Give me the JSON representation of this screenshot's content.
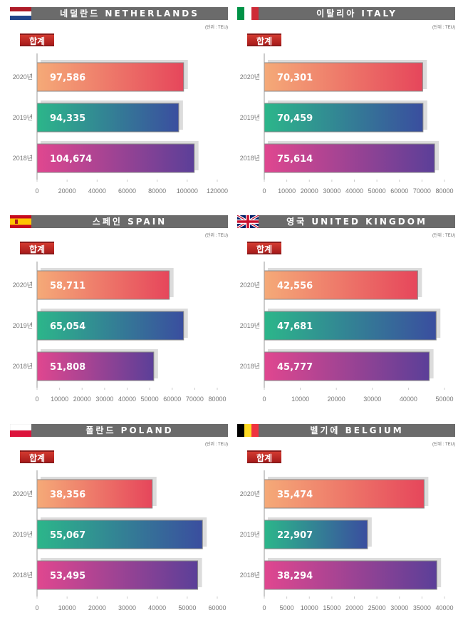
{
  "unit_label": "(단위 : TEU)",
  "total_label": "합계",
  "colors": {
    "2020": [
      "#f5aa78",
      "#e6465b"
    ],
    "2019": [
      "#2cb68a",
      "#3a4e9f"
    ],
    "2018": [
      "#e0478f",
      "#5b3f98"
    ],
    "header_bg": "#6b6b6b",
    "shadow": "#dcdcdc"
  },
  "chart_data": [
    {
      "type": "bar",
      "title": "네덜란드 NETHERLANDS",
      "flag": "netherlands",
      "categories": [
        "2020년",
        "2019년",
        "2018년"
      ],
      "values": [
        97586,
        94335,
        104674
      ],
      "value_labels": [
        "97,586",
        "94,335",
        "104,674"
      ],
      "xlim": [
        0,
        120000
      ],
      "xticks": [
        0,
        20000,
        40000,
        60000,
        80000,
        100000,
        120000
      ]
    },
    {
      "type": "bar",
      "title": "이탈리아 ITALY",
      "flag": "italy",
      "categories": [
        "2020년",
        "2019년",
        "2018년"
      ],
      "values": [
        70301,
        70459,
        75614
      ],
      "value_labels": [
        "70,301",
        "70,459",
        "75,614"
      ],
      "xlim": [
        0,
        80000
      ],
      "xticks": [
        0,
        10000,
        20000,
        30000,
        40000,
        50000,
        60000,
        70000,
        80000
      ]
    },
    {
      "type": "bar",
      "title": "스페인 SPAIN",
      "flag": "spain",
      "categories": [
        "2020년",
        "2019년",
        "2018년"
      ],
      "values": [
        58711,
        65054,
        51808
      ],
      "value_labels": [
        "58,711",
        "65,054",
        "51,808"
      ],
      "xlim": [
        0,
        80000
      ],
      "xticks": [
        0,
        10000,
        20000,
        30000,
        40000,
        50000,
        60000,
        70000,
        80000
      ]
    },
    {
      "type": "bar",
      "title": "영국 UNITED KINGDOM",
      "flag": "uk",
      "categories": [
        "2020년",
        "2019년",
        "2018년"
      ],
      "values": [
        42556,
        47681,
        45777
      ],
      "value_labels": [
        "42,556",
        "47,681",
        "45,777"
      ],
      "xlim": [
        0,
        50000
      ],
      "xticks": [
        0,
        10000,
        20000,
        30000,
        40000,
        50000
      ]
    },
    {
      "type": "bar",
      "title": "폴란드 POLAND",
      "flag": "poland",
      "categories": [
        "2020년",
        "2019년",
        "2018년"
      ],
      "values": [
        38356,
        55067,
        53495
      ],
      "value_labels": [
        "38,356",
        "55,067",
        "53,495"
      ],
      "xlim": [
        0,
        60000
      ],
      "xticks": [
        0,
        10000,
        20000,
        30000,
        40000,
        50000,
        60000
      ]
    },
    {
      "type": "bar",
      "title": "벨기에 BELGIUM",
      "flag": "belgium",
      "categories": [
        "2020년",
        "2019년",
        "2018년"
      ],
      "values": [
        35474,
        22907,
        38294
      ],
      "value_labels": [
        "35,474",
        "22,907",
        "38,294"
      ],
      "xlim": [
        0,
        40000
      ],
      "xticks": [
        0,
        5000,
        10000,
        15000,
        20000,
        25000,
        30000,
        35000,
        40000
      ]
    }
  ]
}
